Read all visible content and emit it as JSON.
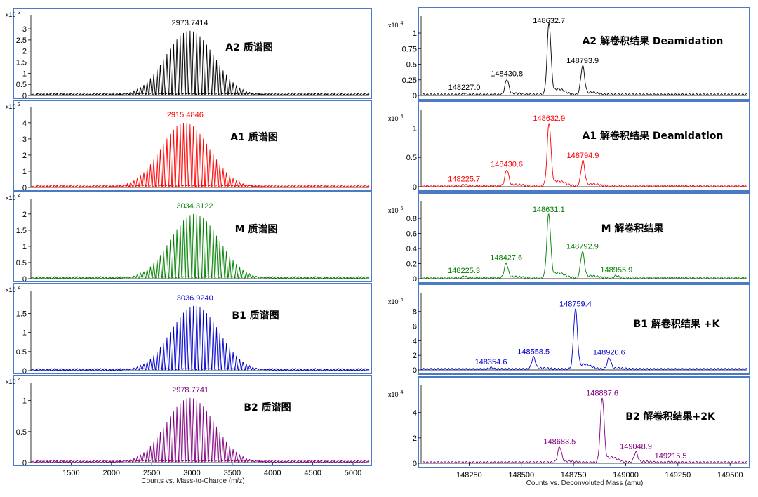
{
  "chart_data": [
    {
      "id": "A2",
      "side": "left",
      "type": "line",
      "title": "A2 质谱图",
      "multiplier": "x10",
      "exponent": "3",
      "color": "#000000",
      "yticks": [
        "0",
        "0.5",
        "1",
        "1.5",
        "2",
        "2.5",
        "3"
      ],
      "ymax": 3.35,
      "xlim": [
        1000,
        5200
      ],
      "center": 2973.7,
      "sigma": 300,
      "peak_label": "2973.7414"
    },
    {
      "id": "A1",
      "side": "left",
      "type": "line",
      "title": "A1 质谱图",
      "multiplier": "x10",
      "exponent": "3",
      "color": "#ff0000",
      "yticks": [
        "0",
        "1",
        "2",
        "3",
        "4"
      ],
      "ymax": 4.6,
      "xlim": [
        1000,
        5200
      ],
      "center": 2915.5,
      "sigma": 300,
      "peak_label": "2915.4846"
    },
    {
      "id": "M",
      "side": "left",
      "type": "line",
      "title": "M 质谱图",
      "multiplier": "x10",
      "exponent": "4",
      "color": "#008000",
      "yticks": [
        "0",
        "0.5",
        "1",
        "1.5",
        "2"
      ],
      "ymax": 2.3,
      "xlim": [
        1000,
        5200
      ],
      "center": 3034.3,
      "sigma": 300,
      "peak_label": "3034.3122"
    },
    {
      "id": "B1",
      "side": "left",
      "type": "line",
      "title": "B1 质谱图",
      "multiplier": "x10",
      "exponent": "4",
      "color": "#0000cc",
      "yticks": [
        "0",
        "0.5",
        "1",
        "1.5"
      ],
      "ymax": 1.95,
      "xlim": [
        1000,
        5200
      ],
      "center": 3036.9,
      "sigma": 300,
      "peak_label": "3036.9240"
    },
    {
      "id": "B2",
      "side": "left",
      "type": "line",
      "title": "B2 质谱图",
      "multiplier": "x10",
      "exponent": "4",
      "color": "#800080",
      "yticks": [
        "0",
        "0.5",
        "1"
      ],
      "ymax": 1.2,
      "xlim": [
        1000,
        5200
      ],
      "center": 2978.8,
      "sigma": 300,
      "peak_label": "2978.7741",
      "xticks": [
        "1500",
        "2000",
        "2500",
        "3000",
        "3500",
        "4000",
        "4500",
        "5000"
      ],
      "xlabel": "Counts vs. Mass-to-Charge (m/z)"
    },
    {
      "id": "A2d",
      "side": "right",
      "type": "line",
      "title": "A2 解卷积结果 Deamidation",
      "multiplier": "x10",
      "exponent": "4",
      "color": "#000000",
      "yticks": [
        "0",
        "0.25",
        "0.5",
        "0.75",
        "1"
      ],
      "ymax": 1.18,
      "xlim": [
        148020,
        149580
      ],
      "peaks": [
        {
          "m": 148227.0,
          "y": 0.02,
          "label": "148227.0"
        },
        {
          "m": 148430.8,
          "y": 0.24,
          "label": "148430.8"
        },
        {
          "m": 148632.7,
          "y": 1.13,
          "label": "148632.7"
        },
        {
          "m": 148793.9,
          "y": 0.45,
          "label": "148793.9"
        }
      ]
    },
    {
      "id": "A1d",
      "side": "right",
      "type": "line",
      "title": "A1 解卷积结果 Deamidation",
      "multiplier": "x10",
      "exponent": "4",
      "color": "#ff0000",
      "yticks": [
        "0",
        "0.5",
        "1"
      ],
      "ymax": 1.22,
      "xlim": [
        148020,
        149580
      ],
      "peaks": [
        {
          "m": 148225.7,
          "y": 0.02,
          "label": "148225.7"
        },
        {
          "m": 148430.6,
          "y": 0.27,
          "label": "148430.6"
        },
        {
          "m": 148632.9,
          "y": 1.05,
          "label": "148632.9"
        },
        {
          "m": 148794.9,
          "y": 0.42,
          "label": "148794.9"
        }
      ]
    },
    {
      "id": "Md",
      "side": "right",
      "type": "line",
      "title": "M 解卷积结果",
      "multiplier": "x10",
      "exponent": "5",
      "color": "#008000",
      "yticks": [
        "0",
        "0.2",
        "0.4",
        "0.6",
        "0.8"
      ],
      "ymax": 0.95,
      "xlim": [
        148020,
        149580
      ],
      "peaks": [
        {
          "m": 148225.3,
          "y": 0.02,
          "label": "148225.3"
        },
        {
          "m": 148427.6,
          "y": 0.19,
          "label": "148427.6"
        },
        {
          "m": 148631.1,
          "y": 0.83,
          "label": "148631.1"
        },
        {
          "m": 148792.9,
          "y": 0.34,
          "label": "148792.9"
        },
        {
          "m": 148955.9,
          "y": 0.03,
          "label": "148955.9"
        }
      ]
    },
    {
      "id": "B1d",
      "side": "right",
      "type": "line",
      "title": "B1 解卷积结果 +K",
      "multiplier": "x10",
      "exponent": "4",
      "color": "#0000cc",
      "yticks": [
        "0",
        "2",
        "4",
        "6",
        "8"
      ],
      "ymax": 9.8,
      "xlim": [
        148020,
        149580
      ],
      "peaks": [
        {
          "m": 148354.6,
          "y": 0.2,
          "label": "148354.6"
        },
        {
          "m": 148558.5,
          "y": 1.6,
          "label": "148558.5"
        },
        {
          "m": 148759.4,
          "y": 8.1,
          "label": "148759.4"
        },
        {
          "m": 148920.6,
          "y": 1.5,
          "label": "148920.6"
        }
      ]
    },
    {
      "id": "B2d",
      "side": "right",
      "type": "line",
      "title": "B2 解卷积结果+2K",
      "multiplier": "x10",
      "exponent": "4",
      "color": "#800080",
      "yticks": [
        "0",
        "2",
        "4"
      ],
      "ymax": 5.7,
      "xlim": [
        148020,
        149580
      ],
      "peaks": [
        {
          "m": 148683.5,
          "y": 1.2,
          "label": "148683.5"
        },
        {
          "m": 148887.6,
          "y": 5.0,
          "label": "148887.6"
        },
        {
          "m": 149048.9,
          "y": 0.8,
          "label": "149048.9"
        },
        {
          "m": 149215.5,
          "y": 0.05,
          "label": "149215.5"
        }
      ],
      "xticks": [
        "148250",
        "148500",
        "148750",
        "149000",
        "149250",
        "149500"
      ],
      "xlabel": "Counts vs. Deconvoluted Mass (amu)"
    }
  ]
}
